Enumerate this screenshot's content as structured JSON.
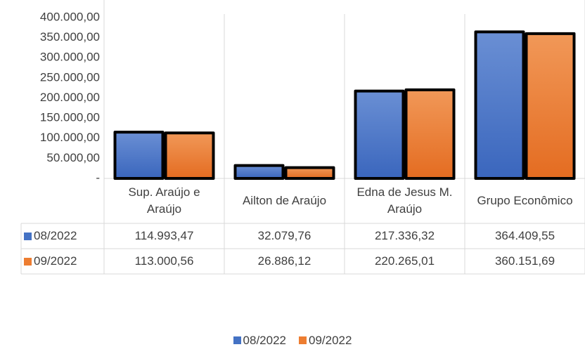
{
  "chart_data": {
    "type": "bar",
    "categories": [
      "Sup. Araújo e Araújo",
      "Ailton de Araújo",
      "Edna de Jesus M. Araújo",
      "Grupo Econômico"
    ],
    "series": [
      {
        "name": "08/2022",
        "color": "#4472c4",
        "values": [
          114993.47,
          32079.76,
          217336.32,
          364409.55
        ],
        "value_labels": [
          "114.993,47",
          "32.079,76",
          "217.336,32",
          "364.409,55"
        ]
      },
      {
        "name": "09/2022",
        "color": "#ed7d31",
        "values": [
          113000.56,
          26886.12,
          220265.01,
          360151.69
        ],
        "value_labels": [
          "113.000,56",
          "26.886,12",
          "220.265,01",
          "360.151,69"
        ]
      }
    ],
    "ylim": [
      0,
      400000
    ],
    "yticks": [
      {
        "value": 0,
        "label": "-"
      },
      {
        "value": 50000,
        "label": "50.000,00"
      },
      {
        "value": 100000,
        "label": "100.000,00"
      },
      {
        "value": 150000,
        "label": "150.000,00"
      },
      {
        "value": 200000,
        "label": "200.000,00"
      },
      {
        "value": 250000,
        "label": "250.000,00"
      },
      {
        "value": 300000,
        "label": "300.000,00"
      },
      {
        "value": 350000,
        "label": "350.000,00"
      },
      {
        "value": 400000,
        "label": "400.000,00"
      }
    ],
    "grid": false,
    "legend": "bottom"
  }
}
